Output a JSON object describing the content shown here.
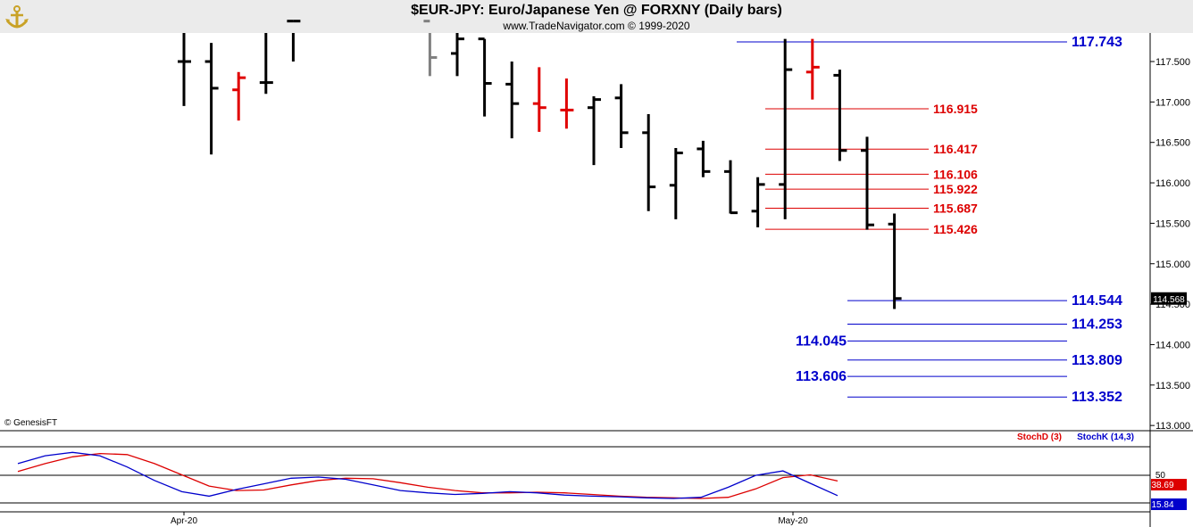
{
  "header": {
    "title": "$EUR-JPY:  Euro/Japanese Yen @ FORXNY  (Daily bars)",
    "subtitle": "www.TradeNavigator.com © 1999-2020",
    "logo_icon": "trading-anchor-icon"
  },
  "copyright": "© GenesisFT",
  "colors": {
    "up_bar": "#e00000",
    "down_bar": "#000000",
    "neutral_bar": "#808080",
    "resistance": "#dd0000",
    "support": "#0000cc",
    "stoch_d": "#dd0000",
    "stoch_k": "#0000cc"
  },
  "chart_data": [
    {
      "type": "ohlc",
      "ylim": [
        113.0,
        117.85
      ],
      "y_ticks": [
        "117.500",
        "117.000",
        "116.500",
        "116.000",
        "115.500",
        "115.000",
        "114.500",
        "114.000",
        "113.500",
        "113.000"
      ],
      "x_labels": [
        "Apr-20",
        "May-20"
      ],
      "last_price_label": "114.568",
      "bars": [
        {
          "x": 0,
          "o": 117.5,
          "h": 118.1,
          "l": 116.95,
          "c": 117.5,
          "color": "down"
        },
        {
          "x": 1,
          "o": 117.5,
          "h": 117.73,
          "l": 116.35,
          "c": 117.17,
          "color": "down"
        },
        {
          "x": 2,
          "o": 117.15,
          "h": 117.37,
          "l": 116.77,
          "c": 117.3,
          "color": "up"
        },
        {
          "x": 3,
          "o": 117.24,
          "h": 118.0,
          "l": 117.1,
          "c": 117.24,
          "color": "down"
        },
        {
          "x": 4,
          "o": 118.0,
          "h": 118.1,
          "l": 117.5,
          "c": 118.0,
          "color": "down"
        },
        {
          "x": 9,
          "o": 118.0,
          "h": 118.0,
          "l": 117.32,
          "c": 117.55,
          "color": "neutral"
        },
        {
          "x": 10,
          "o": 117.6,
          "h": 117.9,
          "l": 117.32,
          "c": 117.78,
          "color": "down"
        },
        {
          "x": 11,
          "o": 117.78,
          "h": 117.78,
          "l": 116.82,
          "c": 117.23,
          "color": "down"
        },
        {
          "x": 12,
          "o": 117.22,
          "h": 117.5,
          "l": 116.55,
          "c": 116.98,
          "color": "down"
        },
        {
          "x": 13,
          "o": 116.98,
          "h": 117.43,
          "l": 116.63,
          "c": 116.93,
          "color": "up"
        },
        {
          "x": 14,
          "o": 116.9,
          "h": 117.29,
          "l": 116.67,
          "c": 116.9,
          "color": "up"
        },
        {
          "x": 15,
          "o": 116.93,
          "h": 117.07,
          "l": 116.22,
          "c": 117.03,
          "color": "down"
        },
        {
          "x": 16,
          "o": 117.05,
          "h": 117.22,
          "l": 116.43,
          "c": 116.62,
          "color": "down"
        },
        {
          "x": 17,
          "o": 116.62,
          "h": 116.85,
          "l": 115.65,
          "c": 115.95,
          "color": "down"
        },
        {
          "x": 18,
          "o": 115.97,
          "h": 116.43,
          "l": 115.55,
          "c": 116.37,
          "color": "down"
        },
        {
          "x": 19,
          "o": 116.42,
          "h": 116.52,
          "l": 116.07,
          "c": 116.14,
          "color": "down"
        },
        {
          "x": 20,
          "o": 116.14,
          "h": 116.28,
          "l": 115.62,
          "c": 115.63,
          "color": "down"
        },
        {
          "x": 21,
          "o": 115.65,
          "h": 116.07,
          "l": 115.45,
          "c": 115.98,
          "color": "down"
        },
        {
          "x": 22,
          "o": 115.98,
          "h": 117.78,
          "l": 115.55,
          "c": 117.4,
          "color": "down"
        },
        {
          "x": 23,
          "o": 117.37,
          "h": 117.78,
          "l": 117.03,
          "c": 117.43,
          "color": "up"
        },
        {
          "x": 24,
          "o": 117.33,
          "h": 117.4,
          "l": 116.27,
          "c": 116.4,
          "color": "down"
        },
        {
          "x": 25,
          "o": 116.4,
          "h": 116.57,
          "l": 115.42,
          "c": 115.48,
          "color": "down"
        },
        {
          "x": 26,
          "o": 115.49,
          "h": 115.62,
          "l": 114.44,
          "c": 114.57,
          "color": "down"
        }
      ],
      "levels": [
        {
          "label": "117.743",
          "value": 117.743,
          "kind": "support"
        },
        {
          "label": "116.915",
          "value": 116.915,
          "kind": "resistance"
        },
        {
          "label": "116.417",
          "value": 116.417,
          "kind": "resistance"
        },
        {
          "label": "116.106",
          "value": 116.106,
          "kind": "resistance"
        },
        {
          "label": "115.922",
          "value": 115.922,
          "kind": "resistance"
        },
        {
          "label": "115.687",
          "value": 115.687,
          "kind": "resistance"
        },
        {
          "label": "115.426",
          "value": 115.426,
          "kind": "resistance"
        },
        {
          "label": "114.544",
          "value": 114.544,
          "kind": "support"
        },
        {
          "label": "114.253",
          "value": 114.253,
          "kind": "support"
        },
        {
          "label": "114.045",
          "value": 114.045,
          "kind": "support"
        },
        {
          "label": "113.809",
          "value": 113.809,
          "kind": "support"
        },
        {
          "label": "113.606",
          "value": 113.606,
          "kind": "support"
        },
        {
          "label": "113.352",
          "value": 113.352,
          "kind": "support"
        }
      ]
    },
    {
      "type": "line",
      "ylim": [
        0,
        100
      ],
      "y_ticks": [
        "50"
      ],
      "legend": [
        "StochD (3)",
        "StochK (14,3)"
      ],
      "series": [
        {
          "name": "StochD (3)",
          "x": [
            0,
            1,
            2,
            3,
            4,
            5,
            6,
            7,
            8,
            9,
            10,
            11,
            12,
            13,
            14,
            15,
            16,
            17,
            18,
            19,
            20,
            21,
            22,
            23,
            24,
            25,
            26,
            27,
            28,
            29,
            30,
            31,
            32
          ],
          "values": [
            56,
            70,
            82,
            88,
            86,
            70,
            50,
            30,
            22,
            23,
            32,
            40,
            44,
            43,
            36,
            28,
            22,
            18,
            18,
            19,
            18,
            15,
            12,
            10,
            9,
            8,
            10,
            25,
            45,
            50,
            39,
            null,
            null
          ]
        },
        {
          "name": "StochK (14,3)",
          "x": [
            0,
            1,
            2,
            3,
            4,
            5,
            6,
            7,
            8,
            9,
            10,
            11,
            12,
            13,
            14,
            15,
            16,
            17,
            18,
            19,
            20,
            21,
            22,
            23,
            24,
            25,
            26,
            27,
            28,
            29,
            30,
            31,
            32
          ],
          "values": [
            70,
            84,
            90,
            84,
            64,
            40,
            20,
            12,
            24,
            34,
            44,
            46,
            42,
            32,
            22,
            18,
            15,
            17,
            20,
            18,
            14,
            12,
            11,
            9,
            8,
            10,
            28,
            49,
            57,
            35,
            13,
            null,
            null
          ]
        }
      ],
      "value_labels": [
        "38.69",
        "15.84"
      ]
    }
  ]
}
